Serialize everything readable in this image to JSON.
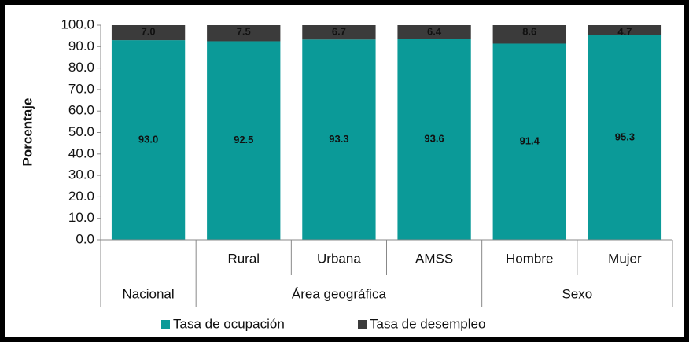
{
  "chart_data": {
    "type": "stacked-bar",
    "y_label": "Porcentaje",
    "categories": [
      null,
      "Rural",
      "Urbana",
      "AMSS",
      "Hombre",
      "Mujer"
    ],
    "groups": [
      {
        "label": "Nacional",
        "span": 1
      },
      {
        "label": "Área geográfica",
        "span": 3
      },
      {
        "label": "Sexo",
        "span": 2
      }
    ],
    "series": [
      {
        "name": "Tasa de ocupación",
        "color": "#0b9a98",
        "values": [
          93.0,
          92.5,
          93.3,
          93.6,
          91.4,
          95.3
        ],
        "value_labels": [
          "93.0",
          "92.5",
          "93.3",
          "93.6",
          "91.4",
          "95.3"
        ]
      },
      {
        "name": "Tasa de desempleo",
        "color": "#3b3b3b",
        "values": [
          7.0,
          7.5,
          6.7,
          6.4,
          8.6,
          4.7
        ],
        "value_labels": [
          "7.0",
          "7.5",
          "6.7",
          "6.4",
          "8.6",
          "4.7"
        ]
      }
    ],
    "ylim": [
      0,
      100
    ],
    "yticks": [
      {
        "value": 0,
        "label": "0.0"
      },
      {
        "value": 10,
        "label": "10.0"
      },
      {
        "value": 20,
        "label": "20.0"
      },
      {
        "value": 30,
        "label": "30.0"
      },
      {
        "value": 40,
        "label": "40.0"
      },
      {
        "value": 50,
        "label": "50.0"
      },
      {
        "value": 60,
        "label": "60.0"
      },
      {
        "value": 70,
        "label": "70.0"
      },
      {
        "value": 80,
        "label": "80.0"
      },
      {
        "value": 90,
        "label": "90.0"
      },
      {
        "value": 100,
        "label": "100.0"
      }
    ],
    "legend": "bottom"
  }
}
